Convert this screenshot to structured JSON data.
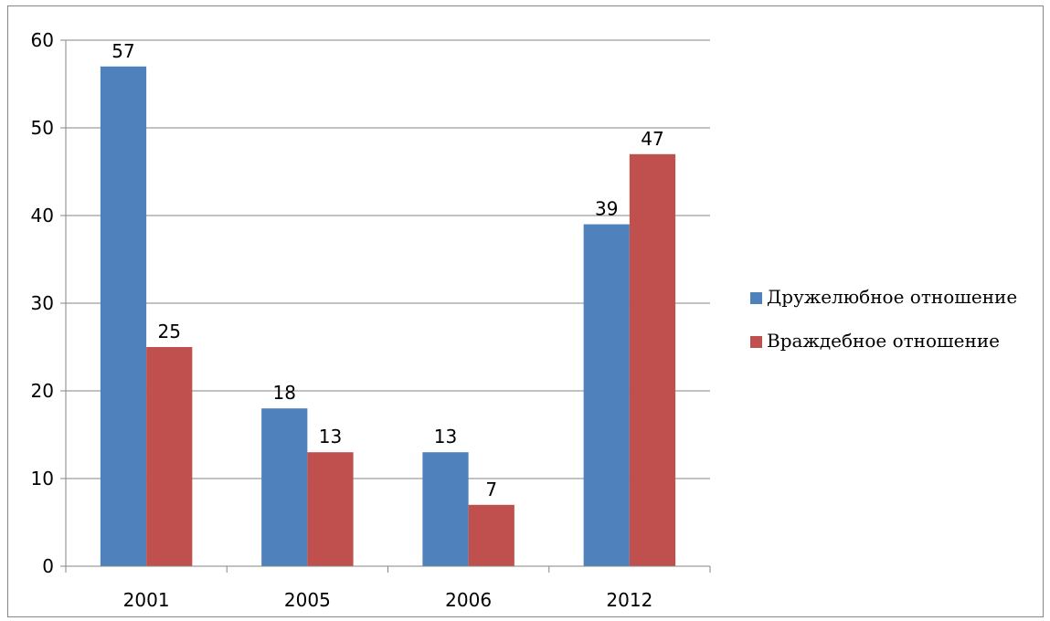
{
  "chart_data": {
    "type": "bar",
    "title": "",
    "xlabel": "",
    "ylabel": "",
    "categories": [
      "2001",
      "2005",
      "2006",
      "2012"
    ],
    "ylim": [
      0,
      60
    ],
    "yticks": [
      0,
      10,
      20,
      30,
      40,
      50,
      60
    ],
    "grid": true,
    "legend_position": "right",
    "data_labels": true,
    "series": [
      {
        "name": "Дружелюбное отношение",
        "color": "#4F81BD",
        "values": [
          57,
          18,
          13,
          39
        ]
      },
      {
        "name": "Враждебное отношение",
        "color": "#C0504D",
        "values": [
          25,
          13,
          7,
          47
        ]
      }
    ]
  }
}
